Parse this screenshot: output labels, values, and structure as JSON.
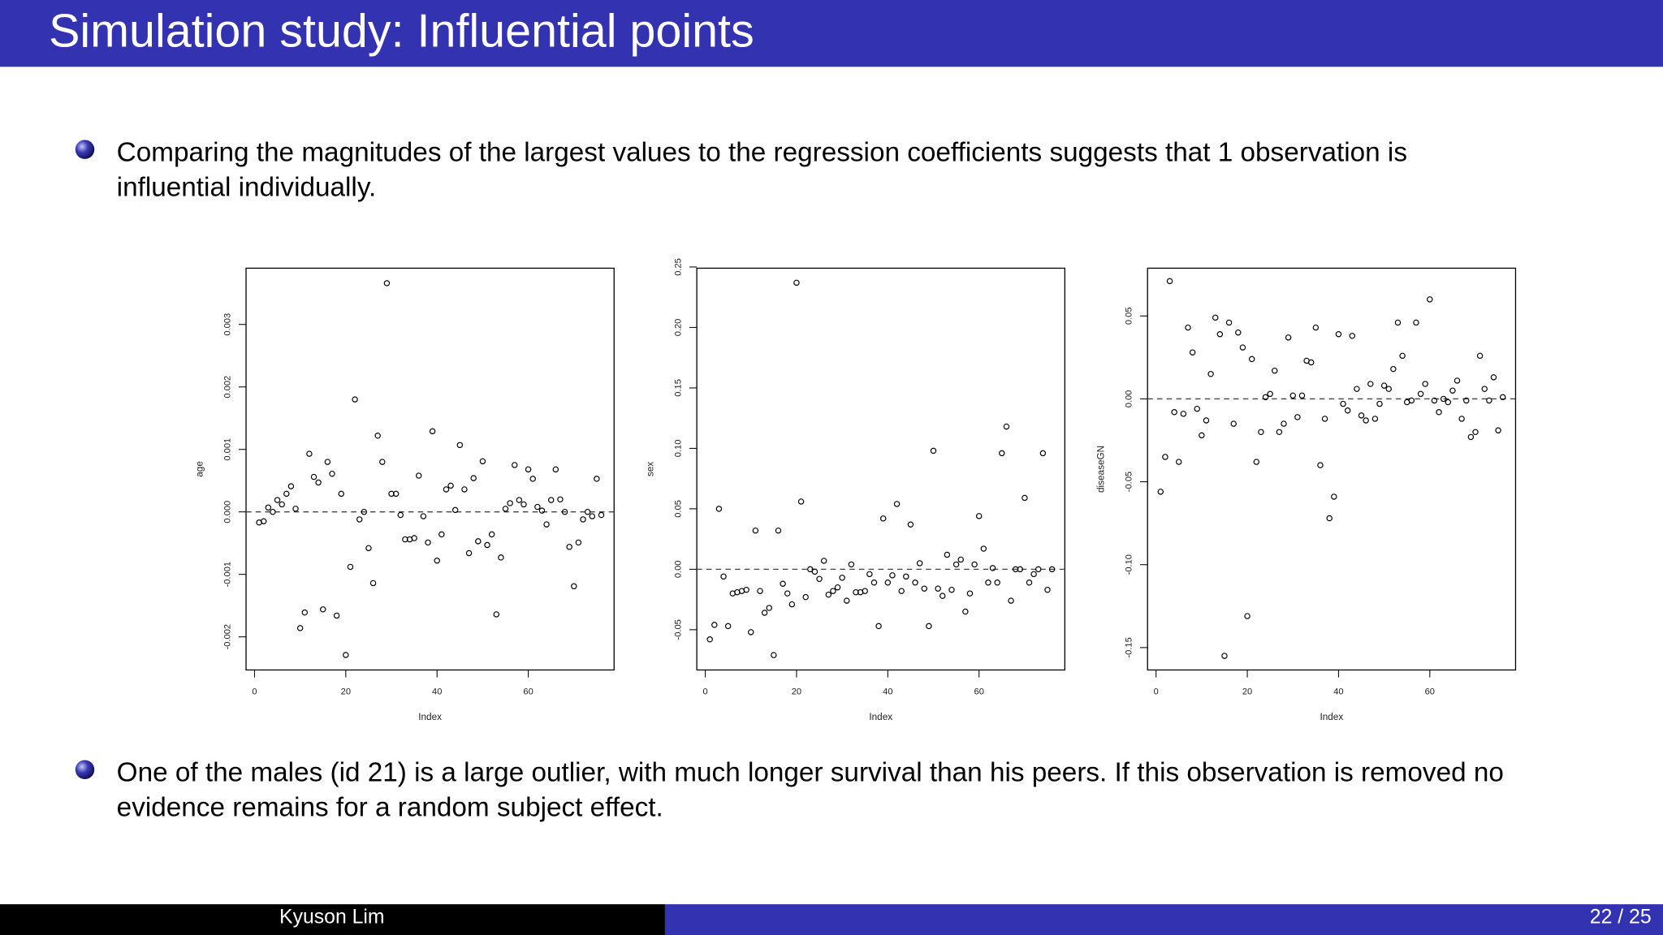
{
  "header": {
    "title": "Simulation study: Influential points"
  },
  "bullets": [
    [
      "Comparing the magnitudes of the largest values to the regression coefficients suggests that 1 observation is",
      "influential individually."
    ],
    [
      "One of the males (id 21) is a large outlier, with much longer survival than his peers. If this observation is removed no",
      "evidence remains for a random subject effect."
    ]
  ],
  "footer": {
    "author": "Kyuson Lim",
    "page": "22 / 25"
  },
  "chart_data": [
    {
      "type": "scatter",
      "xlabel": "Index",
      "ylabel": "age",
      "color": "#000000",
      "x": [
        1,
        2,
        3,
        4,
        5,
        6,
        7,
        8,
        9,
        10,
        11,
        12,
        13,
        14,
        15,
        16,
        17,
        18,
        19,
        20,
        21,
        22,
        23,
        24,
        25,
        26,
        27,
        28,
        29,
        30,
        31,
        32,
        33,
        34,
        35,
        36,
        37,
        38,
        39,
        40,
        41,
        42,
        43,
        44,
        45,
        46,
        47,
        48,
        49,
        50,
        51,
        52,
        53,
        54,
        55,
        56,
        57,
        58,
        59,
        60,
        61,
        62,
        63,
        64,
        65,
        66,
        67,
        68,
        69,
        70,
        71,
        72,
        73,
        74,
        75,
        76
      ],
      "values": [
        -0.00017,
        -0.00015,
        7e-05,
        0,
        0.00019,
        0.00012,
        0.00029,
        0.00041,
        5e-05,
        -0.00186,
        -0.00161,
        0.00093,
        0.00056,
        0.00047,
        -0.00156,
        0.0008,
        0.00061,
        -0.00166,
        0.00029,
        -0.00229,
        -0.00088,
        0.0018,
        -0.00012,
        0,
        -0.00058,
        -0.00114,
        0.00122,
        0.0008,
        0.00366,
        0.00029,
        0.00029,
        -5e-05,
        -0.00044,
        -0.00044,
        -0.00042,
        0.00058,
        -7e-05,
        -0.00049,
        0.00129,
        -0.00078,
        -0.00036,
        0.00036,
        0.00042,
        3e-05,
        0.00107,
        0.00036,
        -0.00066,
        0.00054,
        -0.00047,
        0.00081,
        -0.00053,
        -0.00036,
        -0.00164,
        -0.00073,
        5e-05,
        0.00014,
        0.00075,
        0.00019,
        0.00012,
        0.00068,
        0.00053,
        8e-05,
        2e-05,
        -0.0002,
        0.00019,
        0.00068,
        0.0002,
        0,
        -0.00056,
        -0.00119,
        -0.00049,
        -0.00012,
        0,
        -7e-05,
        0.00053,
        -5e-05
      ],
      "xlim": [
        -1.86,
        78.8
      ],
      "ylim": [
        -0.00253,
        0.0039
      ],
      "xticks": [
        0,
        20,
        40,
        60
      ],
      "yticks": [
        -0.002,
        -0.001,
        {
          "value": 0,
          "label": "0.000"
        },
        0.001,
        0.002,
        0.003
      ],
      "refline": 0
    },
    {
      "type": "scatter",
      "xlabel": "Index",
      "ylabel": "sex",
      "color": "#000000",
      "x": [
        1,
        2,
        3,
        4,
        5,
        6,
        7,
        8,
        9,
        10,
        11,
        12,
        13,
        14,
        15,
        16,
        17,
        18,
        19,
        20,
        21,
        22,
        23,
        24,
        25,
        26,
        27,
        28,
        29,
        30,
        31,
        32,
        33,
        34,
        35,
        36,
        37,
        38,
        39,
        40,
        41,
        42,
        43,
        44,
        45,
        46,
        47,
        48,
        49,
        50,
        51,
        52,
        53,
        54,
        55,
        56,
        57,
        58,
        59,
        60,
        61,
        62,
        63,
        64,
        65,
        66,
        67,
        68,
        69,
        70,
        71,
        72,
        73,
        74,
        75,
        76
      ],
      "values": [
        -0.058,
        -0.046,
        0.05,
        -0.006,
        -0.047,
        -0.02,
        -0.019,
        -0.018,
        -0.017,
        -0.052,
        0.032,
        -0.018,
        -0.036,
        -0.032,
        -0.071,
        0.032,
        -0.012,
        -0.02,
        -0.029,
        0.237,
        0.056,
        -0.023,
        0,
        -0.002,
        -0.008,
        0.007,
        -0.021,
        -0.018,
        -0.015,
        -0.007,
        -0.026,
        0.004,
        -0.019,
        -0.019,
        -0.018,
        -0.004,
        -0.011,
        -0.047,
        0.042,
        -0.011,
        -0.005,
        0.054,
        -0.018,
        -0.006,
        0.037,
        -0.011,
        0.005,
        -0.016,
        -0.047,
        0.098,
        -0.016,
        -0.022,
        0.012,
        -0.017,
        0.004,
        0.008,
        -0.035,
        -0.02,
        0.004,
        0.044,
        0.017,
        -0.011,
        0.001,
        -0.011,
        0.096,
        0.118,
        -0.026,
        0,
        0,
        0.059,
        -0.011,
        -0.004,
        0,
        0.096,
        -0.017,
        0
      ],
      "xlim": [
        -1.86,
        78.8
      ],
      "ylim": [
        -0.0833,
        0.249
      ],
      "xticks": [
        0,
        20,
        40,
        60
      ],
      "yticks": [
        -0.05,
        {
          "value": 0,
          "label": "0.00"
        },
        0.05,
        {
          "value": 0.1,
          "label": "0.10"
        },
        0.15,
        {
          "value": 0.2,
          "label": "0.20"
        },
        0.25
      ],
      "refline": 0
    },
    {
      "type": "scatter",
      "xlabel": "Index",
      "ylabel": "diseaseGN",
      "color": "#000000",
      "x": [
        1,
        2,
        3,
        4,
        5,
        6,
        7,
        8,
        9,
        10,
        11,
        12,
        13,
        14,
        15,
        16,
        17,
        18,
        19,
        20,
        21,
        22,
        23,
        24,
        25,
        26,
        27,
        28,
        29,
        30,
        31,
        32,
        33,
        34,
        35,
        36,
        37,
        38,
        39,
        40,
        41,
        42,
        43,
        44,
        45,
        46,
        47,
        48,
        49,
        50,
        51,
        52,
        53,
        54,
        55,
        56,
        57,
        58,
        59,
        60,
        61,
        62,
        63,
        64,
        65,
        66,
        67,
        68,
        69,
        70,
        71,
        72,
        73,
        74,
        75,
        76
      ],
      "values": [
        -0.056,
        -0.035,
        0.071,
        -0.008,
        -0.038,
        -0.009,
        0.043,
        0.028,
        -0.006,
        -0.022,
        -0.013,
        0.015,
        0.049,
        0.039,
        -0.155,
        0.046,
        -0.015,
        0.04,
        0.031,
        -0.131,
        0.024,
        -0.038,
        -0.02,
        0.001,
        0.003,
        0.017,
        -0.02,
        -0.015,
        0.037,
        0.002,
        -0.011,
        0.002,
        0.023,
        0.022,
        0.043,
        -0.04,
        -0.012,
        -0.072,
        -0.059,
        0.039,
        -0.003,
        -0.007,
        0.038,
        0.006,
        -0.01,
        -0.013,
        0.009,
        -0.012,
        -0.003,
        0.008,
        0.006,
        0.018,
        0.046,
        0.026,
        -0.002,
        -0.001,
        0.046,
        0.003,
        0.009,
        0.06,
        -0.001,
        -0.008,
        0,
        -0.002,
        0.005,
        0.011,
        -0.012,
        -0.001,
        -0.023,
        -0.02,
        0.026,
        0.006,
        -0.001,
        0.013,
        -0.019,
        0.001
      ],
      "xlim": [
        -1.86,
        78.8
      ],
      "ylim": [
        -0.1635,
        0.0788
      ],
      "xticks": [
        0,
        20,
        40,
        60
      ],
      "yticks": [
        -0.15,
        {
          "value": -0.1,
          "label": "-0.10"
        },
        -0.05,
        {
          "value": 0,
          "label": "0.00"
        },
        0.05
      ],
      "refline": 0
    }
  ]
}
